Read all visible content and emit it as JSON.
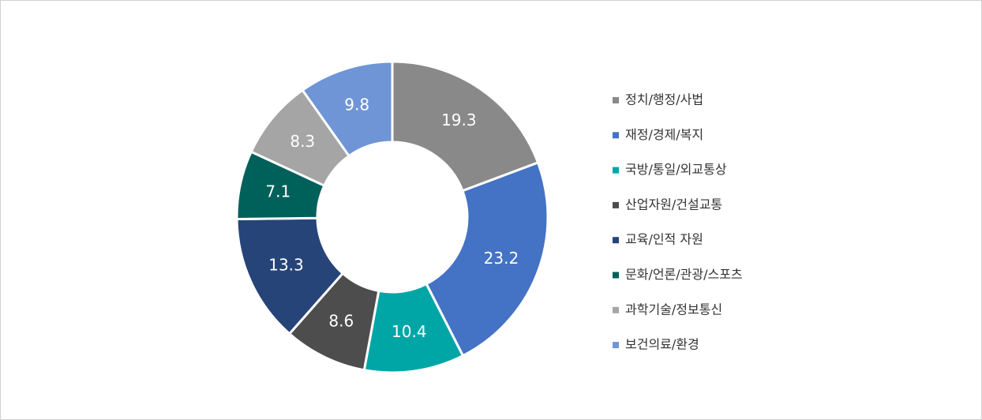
{
  "chart_data": {
    "type": "pie",
    "categories": [
      "정치/행정/사법",
      "재정/경제/복지",
      "국방/통일/외교통상",
      "산업자원/건설교통",
      "교육/인적 자원",
      "문화/언론/관광/스포츠",
      "과학기술/정보통신",
      "보건의료/환경"
    ],
    "values": [
      19.3,
      23.2,
      10.4,
      8.6,
      13.3,
      7.1,
      8.3,
      9.8
    ],
    "colors": [
      "#898989",
      "#4472c4",
      "#00a6a6",
      "#4d4d4d",
      "#264478",
      "#00605a",
      "#a5a5a5",
      "#6f95d6"
    ],
    "donut": true,
    "legend": "right"
  }
}
